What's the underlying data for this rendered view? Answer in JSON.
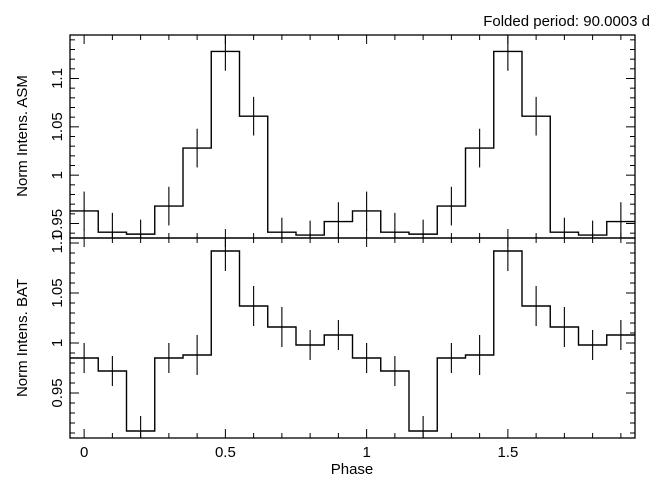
{
  "header_note": "Folded period: 90.0003 d",
  "chart_data": [
    {
      "type": "line",
      "panel": "top",
      "ylabel": "Norm Intens. ASM",
      "xlabel": "",
      "xlim": [
        -0.05,
        1.95
      ],
      "ylim": [
        0.935,
        1.145
      ],
      "x_ticks": [
        0,
        0.5,
        1,
        1.5
      ],
      "y_ticks": [
        0.95,
        1,
        1.05,
        1.1
      ],
      "y_tick_labels": [
        "0.95",
        "1",
        "1.05",
        "1.1"
      ],
      "series": [
        {
          "bin_width": 0.1,
          "x": [
            0,
            0.1,
            0.2,
            0.3,
            0.4,
            0.5,
            0.6,
            0.7,
            0.8,
            0.9,
            1.0,
            1.1,
            1.2,
            1.3,
            1.4,
            1.5,
            1.6,
            1.7,
            1.8,
            1.9
          ],
          "y": [
            0.963,
            0.941,
            0.939,
            0.968,
            1.028,
            1.128,
            1.061,
            0.941,
            0.938,
            0.952,
            0.963,
            0.941,
            0.939,
            0.968,
            1.028,
            1.128,
            1.061,
            0.941,
            0.938,
            0.952
          ],
          "err": [
            0.02,
            0.02,
            0.015,
            0.02,
            0.02,
            0.02,
            0.02,
            0.015,
            0.015,
            0.02,
            0.02,
            0.02,
            0.015,
            0.02,
            0.02,
            0.02,
            0.02,
            0.015,
            0.015,
            0.02
          ]
        }
      ]
    },
    {
      "type": "line",
      "panel": "bottom",
      "ylabel": "Norm Intens. BAT",
      "xlabel": "Phase",
      "xlim": [
        -0.05,
        1.95
      ],
      "ylim": [
        0.905,
        1.105
      ],
      "x_ticks": [
        0,
        0.5,
        1,
        1.5
      ],
      "x_tick_labels": [
        "0",
        "0.5",
        "1",
        "1.5"
      ],
      "y_ticks": [
        0.95,
        1,
        1.05,
        1.1
      ],
      "y_tick_labels": [
        "0.95",
        "1",
        "1.05",
        "1.1"
      ],
      "series": [
        {
          "bin_width": 0.1,
          "x": [
            0,
            0.1,
            0.2,
            0.3,
            0.4,
            0.5,
            0.6,
            0.7,
            0.8,
            0.9,
            1.0,
            1.1,
            1.2,
            1.3,
            1.4,
            1.5,
            1.6,
            1.7,
            1.8,
            1.9
          ],
          "y": [
            0.985,
            0.972,
            0.912,
            0.985,
            0.988,
            1.092,
            1.037,
            1.016,
            0.998,
            1.008,
            0.985,
            0.972,
            0.912,
            0.985,
            0.988,
            1.092,
            1.037,
            1.016,
            0.998,
            1.008
          ],
          "err": [
            0.015,
            0.015,
            0.015,
            0.015,
            0.02,
            0.02,
            0.02,
            0.02,
            0.015,
            0.015,
            0.015,
            0.015,
            0.015,
            0.015,
            0.02,
            0.02,
            0.02,
            0.02,
            0.015,
            0.015
          ]
        }
      ]
    }
  ]
}
